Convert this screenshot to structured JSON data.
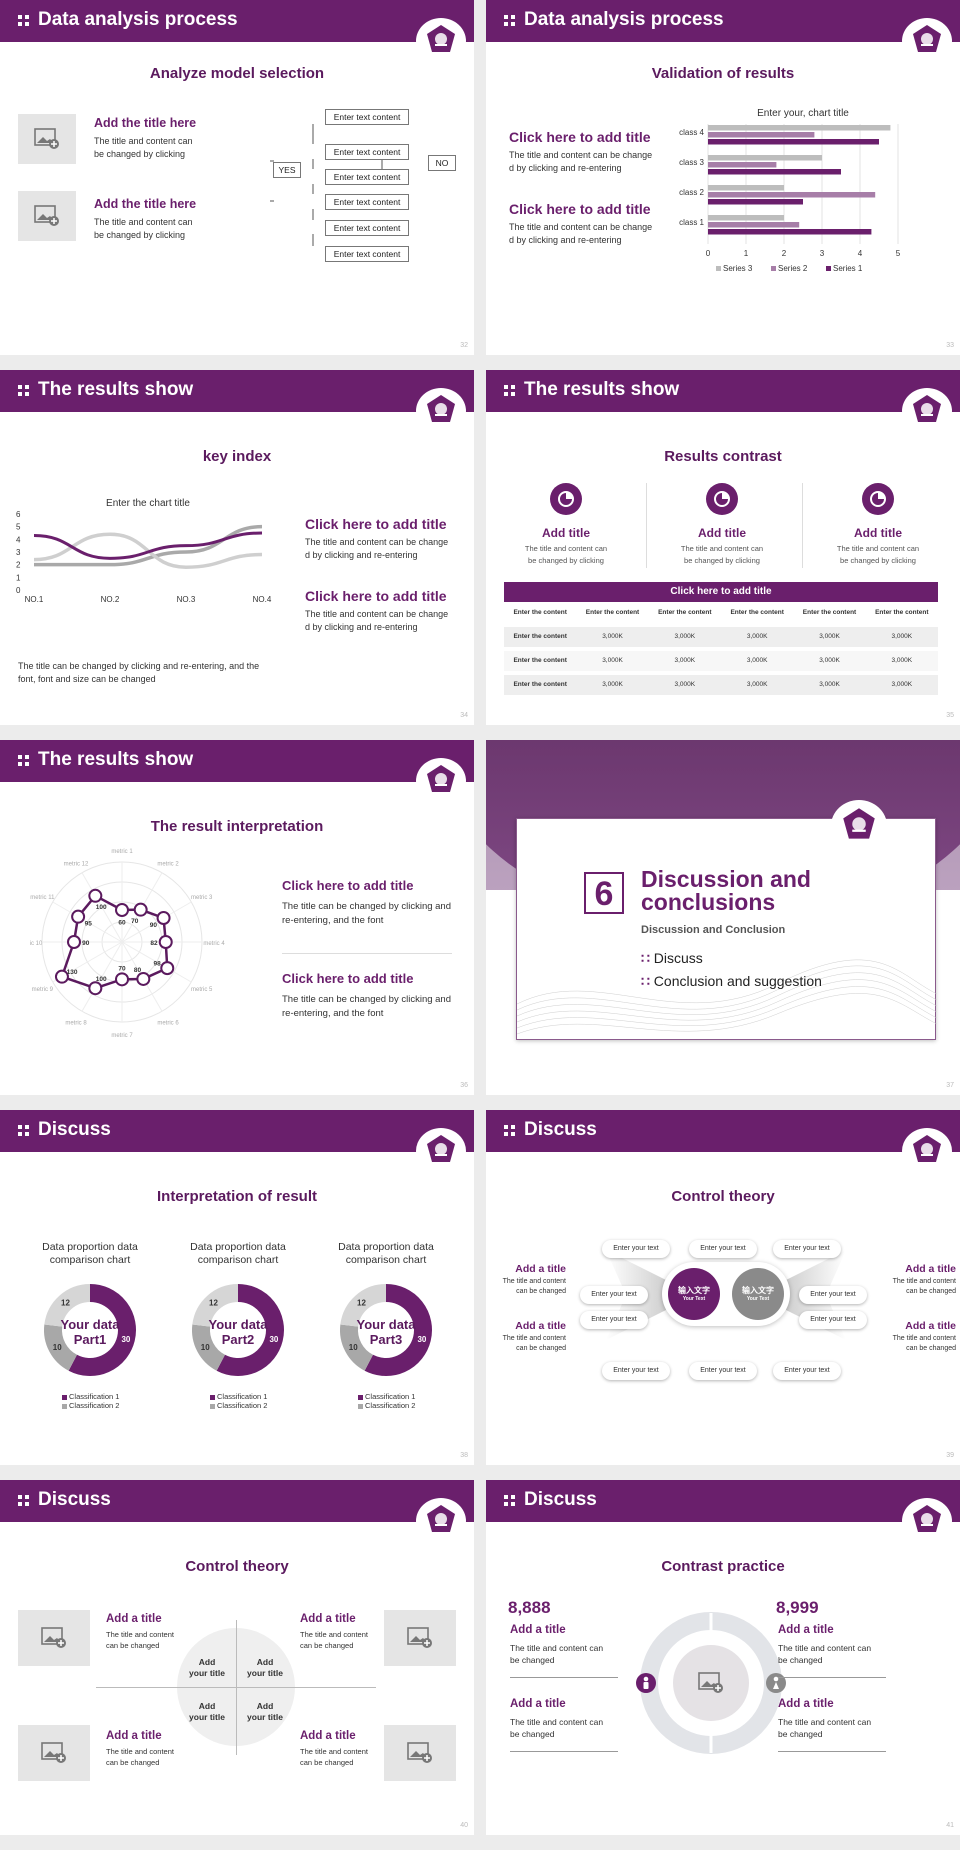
{
  "s1": {
    "header": "Data analysis process",
    "subtitle": "Analyze model selection",
    "page": "32",
    "items": [
      {
        "title": "Add the title here",
        "text1": "The title and content can",
        "text2": "be changed by clicking"
      },
      {
        "title": "Add the title here",
        "text1": "The title and content can",
        "text2": "be changed by clicking"
      }
    ],
    "flow": {
      "box": "Enter text content",
      "yes": "YES",
      "no": "NO"
    }
  },
  "s2": {
    "header": "Data analysis process",
    "subtitle": "Validation of results",
    "page": "33",
    "items": [
      {
        "title": "Click here to add title",
        "text1": "The title and content can be change",
        "text2": "d by clicking and re-entering"
      },
      {
        "title": "Click here to add title",
        "text1": "The title and content can be change",
        "text2": "d by clicking and re-entering"
      }
    ]
  },
  "s3": {
    "header": "The results show",
    "subtitle": "key index",
    "page": "34",
    "items": [
      {
        "title": "Click here to add title",
        "text1": "The title and content can be change",
        "text2": "d by clicking and re-entering"
      },
      {
        "title": "Click here to add title",
        "text1": "The title and content can be change",
        "text2": "d by clicking and re-entering"
      }
    ],
    "note1": "The title can be changed by clicking and re-entering, and the",
    "note2": "font, font and size can be changed"
  },
  "s4": {
    "header": "The results show",
    "subtitle": "Results contrast",
    "page": "35",
    "cards": [
      {
        "title": "Add title",
        "text1": "The title and content can",
        "text2": "be changed by clicking"
      },
      {
        "title": "Add title",
        "text1": "The title and content can",
        "text2": "be changed by clicking"
      },
      {
        "title": "Add title",
        "text1": "The title and content can",
        "text2": "be changed by clicking"
      }
    ],
    "table": {
      "title": "Click here to add title",
      "header": [
        "Enter the content",
        "Enter the content",
        "Enter the content",
        "Enter the content",
        "Enter the content",
        "Enter the content"
      ],
      "rows": [
        [
          "Enter the content",
          "3,000K",
          "3,000K",
          "3,000K",
          "3,000K",
          "3,000K"
        ],
        [
          "Enter the content",
          "3,000K",
          "3,000K",
          "3,000K",
          "3,000K",
          "3,000K"
        ],
        [
          "Enter the content",
          "3,000K",
          "3,000K",
          "3,000K",
          "3,000K",
          "3,000K"
        ]
      ]
    }
  },
  "s5": {
    "header": "The results show",
    "subtitle": "The result interpretation",
    "page": "36",
    "items": [
      {
        "title": "Click here to add  title",
        "text1": "The title can be changed by clicking and",
        "text2": "re-entering, and the font"
      },
      {
        "title": "Click here to add  title",
        "text1": "The title can be changed by clicking and",
        "text2": "re-entering, and the font"
      }
    ]
  },
  "s6": {
    "num": "6",
    "title1": "Discussion and",
    "title2": "conclusions",
    "sub": "Discussion and Conclusion",
    "items": [
      "Discuss",
      "Conclusion and suggestion"
    ],
    "page": "37"
  },
  "s7": {
    "header": "Discuss",
    "subtitle": "Interpretation of result",
    "page": "38",
    "donuts": [
      {
        "title1": "Data proportion data",
        "title2": "comparison chart",
        "center1": "Your data",
        "center2": "Part1"
      },
      {
        "title1": "Data proportion data",
        "title2": "comparison chart",
        "center1": "Your data",
        "center2": "Part2"
      },
      {
        "title1": "Data proportion data",
        "title2": "comparison chart",
        "center1": "Your data",
        "center2": "Part3"
      }
    ],
    "legend": [
      "Classification 1",
      "Classification 2"
    ]
  },
  "s8": {
    "header": "Discuss",
    "subtitle": "Control theory",
    "page": "39",
    "pill": "Enter your text",
    "left": [
      {
        "title": "Add a title",
        "text1": "The title and content",
        "text2": "can be changed"
      },
      {
        "title": "Add a title",
        "text1": "The title and content",
        "text2": "can be changed"
      }
    ],
    "right": [
      {
        "title": "Add a title",
        "text1": "The title and content",
        "text2": "can be changed"
      },
      {
        "title": "Add a title",
        "text1": "The title and content",
        "text2": "can be changed"
      }
    ],
    "c1": "输入文字",
    "c1s": "Your Text",
    "c2": "输入文字",
    "c2s": "Your Text"
  },
  "s9": {
    "header": "Discuss",
    "subtitle": "Control theory",
    "page": "40",
    "items": [
      {
        "title": "Add a title",
        "text1": "The title and content",
        "text2": "can be changed"
      },
      {
        "title": "Add a title",
        "text1": "The title and content",
        "text2": "can be changed"
      },
      {
        "title": "Add a title",
        "text1": "The title and content",
        "text2": "can be changed"
      },
      {
        "title": "Add a title",
        "text1": "The title and content",
        "text2": "can be changed"
      }
    ],
    "quad1": "Add",
    "quad2": "your title"
  },
  "s10": {
    "header": "Discuss",
    "subtitle": "Contrast practice",
    "page": "41",
    "n1": "8,888",
    "n2": "8,999",
    "items": [
      {
        "title": "Add a title",
        "text1": "The title and content can",
        "text2": "be changed"
      },
      {
        "title": "Add a title",
        "text1": "The title and content can",
        "text2": "be changed"
      },
      {
        "title": "Add a title",
        "text1": "The title and content can",
        "text2": "be changed"
      },
      {
        "title": "Add a title",
        "text1": "The title and content can",
        "text2": "be changed"
      }
    ]
  },
  "chart_data": [
    {
      "type": "bar",
      "title": "Enter your, chart title",
      "categories": [
        "class 1",
        "class 2",
        "class 3",
        "class 4"
      ],
      "series": [
        {
          "name": "Series 3",
          "values": [
            2.0,
            2.0,
            3.0,
            4.8
          ]
        },
        {
          "name": "Series 2",
          "values": [
            2.4,
            4.4,
            1.8,
            2.8
          ]
        },
        {
          "name": "Series 1",
          "values": [
            4.3,
            2.5,
            3.5,
            4.5
          ]
        }
      ],
      "xlim": [
        0,
        5
      ],
      "ticks": [
        "0",
        "1",
        "2",
        "3",
        "4",
        "5"
      ],
      "colors": [
        "#bdbdbd",
        "#a77ea8",
        "#6a1f6c"
      ]
    },
    {
      "type": "line",
      "title": "Enter the chart title",
      "categories": [
        "NO.1",
        "NO.2",
        "NO.3",
        "NO.4"
      ],
      "series": [
        {
          "values": [
            4.3,
            2.5,
            3.5,
            4.5
          ]
        },
        {
          "values": [
            2.4,
            4.4,
            1.8,
            2.8
          ]
        },
        {
          "values": [
            2.0,
            2.0,
            3.0,
            5.0
          ]
        }
      ],
      "ylim": [
        0,
        6
      ],
      "yticks": [
        "0",
        "1",
        "2",
        "3",
        "4",
        "5",
        "6"
      ],
      "colors": [
        "#6a1f6c",
        "#cfcfcf",
        "#a9a9a9"
      ]
    },
    {
      "type": "radar",
      "axes": [
        "metric 1",
        "metric 2",
        "metric 3",
        "metric 4",
        "metric 5",
        "metric 6",
        "metric 7",
        "metric 8",
        "metric 9",
        "metric 10",
        "metric 11",
        "metric 12"
      ],
      "values": [
        60,
        70,
        90,
        82,
        98,
        80,
        70,
        100,
        130,
        90,
        95,
        100
      ]
    },
    {
      "type": "pie",
      "values": [
        30,
        10,
        12
      ],
      "labels": [
        "30",
        "10",
        "12"
      ]
    },
    {
      "type": "pie",
      "values": [
        30,
        10,
        12
      ],
      "labels": [
        "30",
        "10",
        "12"
      ]
    },
    {
      "type": "pie",
      "values": [
        30,
        10,
        12
      ],
      "labels": [
        "30",
        "10",
        "12"
      ]
    }
  ]
}
